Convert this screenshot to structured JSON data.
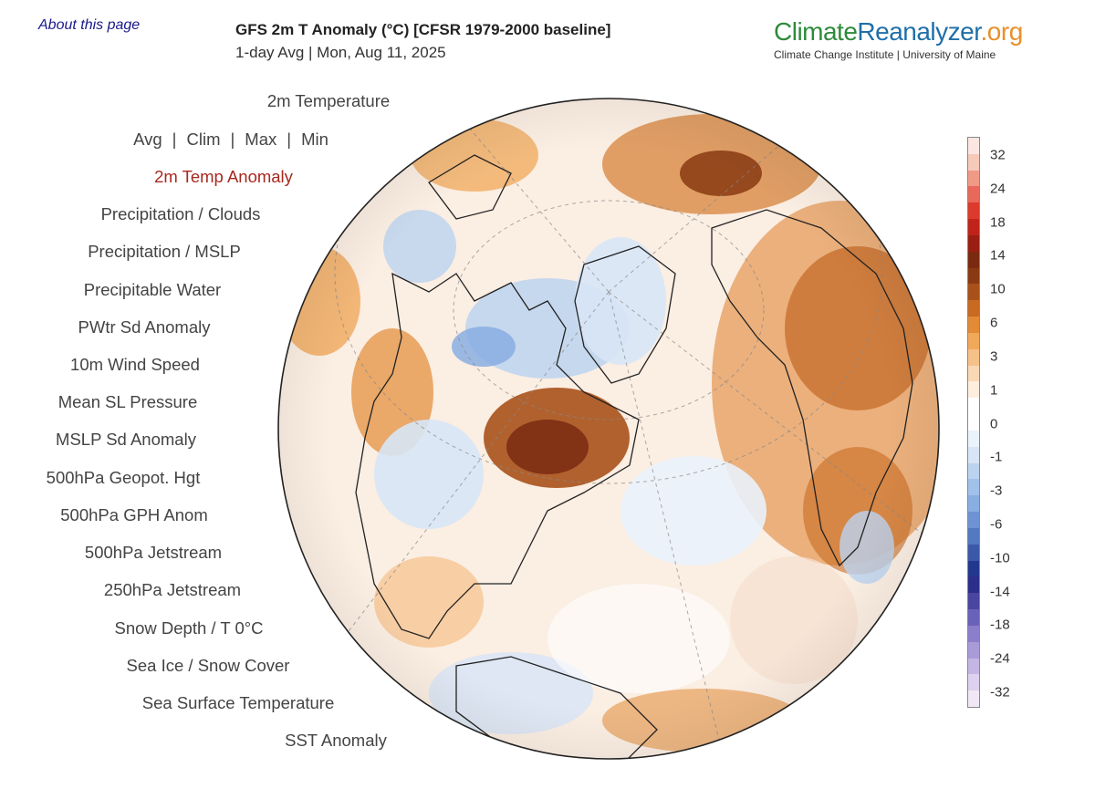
{
  "header": {
    "about_link": "About this page",
    "title": "GFS 2m T Anomaly (°C) [CFSR 1979-2000 baseline]",
    "subtitle": "1-day Avg | Mon, Aug 11, 2025"
  },
  "brand": {
    "name_part1": "Climate",
    "name_part2": "Reanalyzer",
    "name_part3": ".org",
    "subtitle": "Climate Change Institute | University of Maine"
  },
  "menu": {
    "temperature": "2m Temperature",
    "stats": {
      "avg": "Avg",
      "clim": "Clim",
      "max": "Max",
      "min": "Min",
      "separator": "|"
    },
    "items": [
      "2m Temp Anomaly",
      "Precipitation / Clouds",
      "Precipitation / MSLP",
      "Precipitable Water",
      "PWtr Sd Anomaly",
      "10m Wind Speed",
      "Mean SL Pressure",
      "MSLP Sd Anomaly",
      "500hPa Geopot. Hgt",
      "500hPa GPH Anom",
      "500hPa Jetstream",
      "250hPa Jetstream",
      "Snow Depth / T 0°C",
      "Sea Ice / Snow Cover",
      "Sea Surface Temperature",
      "SST Anomaly"
    ],
    "active_index": 0
  },
  "legend": {
    "labels": [
      "32",
      "24",
      "18",
      "14",
      "10",
      "6",
      "3",
      "1",
      "0",
      "-1",
      "-3",
      "-6",
      "-10",
      "-14",
      "-18",
      "-24",
      "-32"
    ],
    "colors": [
      "#fbe6e1",
      "#f7c9b8",
      "#f09a86",
      "#e8685a",
      "#dc3a2c",
      "#c0231a",
      "#9a1f12",
      "#7a2a10",
      "#8a3a12",
      "#a8511a",
      "#c86a22",
      "#e28a35",
      "#f0a85a",
      "#f6c089",
      "#fad8b6",
      "#fdeede",
      "#ffffff",
      "#ffffff",
      "#eaf2fb",
      "#d7e5f6",
      "#bcd3f0",
      "#a2c1ea",
      "#88aee2",
      "#6d93d4",
      "#5278c0",
      "#3a5aa8",
      "#22388e",
      "#2c2f8a",
      "#4a45a0",
      "#6a62b8",
      "#8b7fcb",
      "#a99bd8",
      "#c4b6e4",
      "#dcd1ee",
      "#f0e8f6"
    ]
  },
  "colors": {
    "active_menu": "#a8281e",
    "warm": "#e28a35",
    "cold": "#88aee2"
  }
}
